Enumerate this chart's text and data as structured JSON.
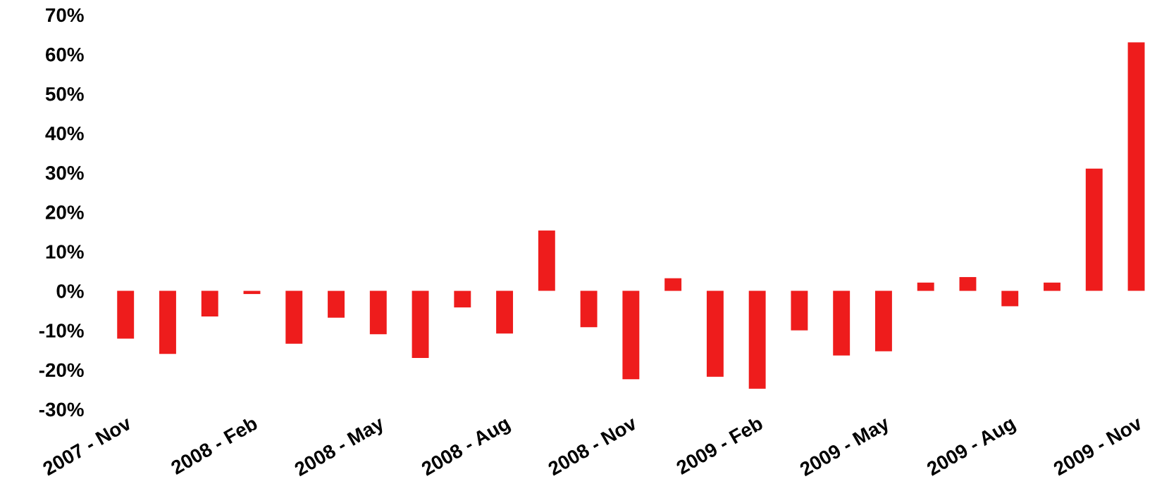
{
  "chart_data": {
    "type": "bar",
    "color": "#ee1c1c",
    "categories": [
      "2007 - Nov",
      null,
      null,
      "2008 - Feb",
      null,
      null,
      "2008 - May",
      null,
      null,
      "2008 - Aug",
      null,
      null,
      "2008 - Nov",
      null,
      null,
      "2009 - Feb",
      null,
      null,
      "2009 - May",
      null,
      null,
      "2009 - Aug",
      null,
      null,
      "2009 - Nov"
    ],
    "values": [
      -12.1,
      -16,
      -6.5,
      -0.8,
      -13.4,
      -6.8,
      -11,
      -17,
      -4.2,
      -10.8,
      15.3,
      -9.2,
      -22.4,
      3.2,
      -21.8,
      -24.8,
      -10,
      -16.4,
      -15.3,
      2.1,
      3.5,
      -3.9,
      2.1,
      31,
      63
    ],
    "ylim": [
      -30,
      70
    ],
    "yticks": [
      {
        "value": -30,
        "label": "-30%"
      },
      {
        "value": -20,
        "label": "-20%"
      },
      {
        "value": -10,
        "label": "-10%"
      },
      {
        "value": 0,
        "label": "0%"
      },
      {
        "value": 10,
        "label": "10%"
      },
      {
        "value": 20,
        "label": "20%"
      },
      {
        "value": 30,
        "label": "30%"
      },
      {
        "value": 40,
        "label": "40%"
      },
      {
        "value": 50,
        "label": "50%"
      },
      {
        "value": 60,
        "label": "60%"
      },
      {
        "value": 70,
        "label": "70%"
      }
    ],
    "grid": false,
    "legend": false
  }
}
